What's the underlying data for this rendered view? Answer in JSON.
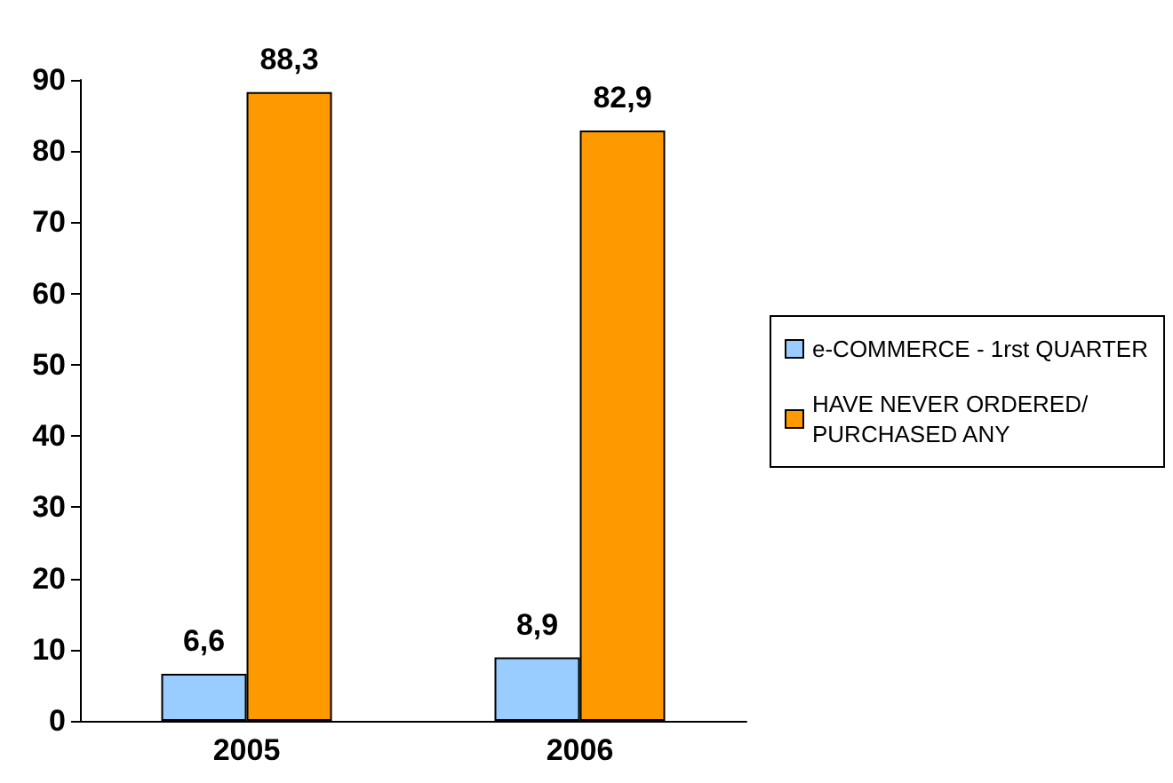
{
  "chart_data": {
    "type": "bar",
    "categories": [
      "2005",
      "2006"
    ],
    "series": [
      {
        "name": "e-COMMERCE - 1rst QUARTER",
        "color": "#99ccff",
        "values": [
          6.6,
          8.9
        ],
        "value_labels": [
          "6,6",
          "8,9"
        ]
      },
      {
        "name": "HAVE NEVER ORDERED/PURCHASED ANY",
        "color": "#ff9900",
        "values": [
          88.3,
          82.9
        ],
        "value_labels": [
          "88,3",
          "82,9"
        ]
      }
    ],
    "ylim": [
      0,
      90
    ],
    "yticks": [
      0,
      10,
      20,
      30,
      40,
      50,
      60,
      70,
      80,
      90
    ],
    "grid": false,
    "legend": "right"
  }
}
